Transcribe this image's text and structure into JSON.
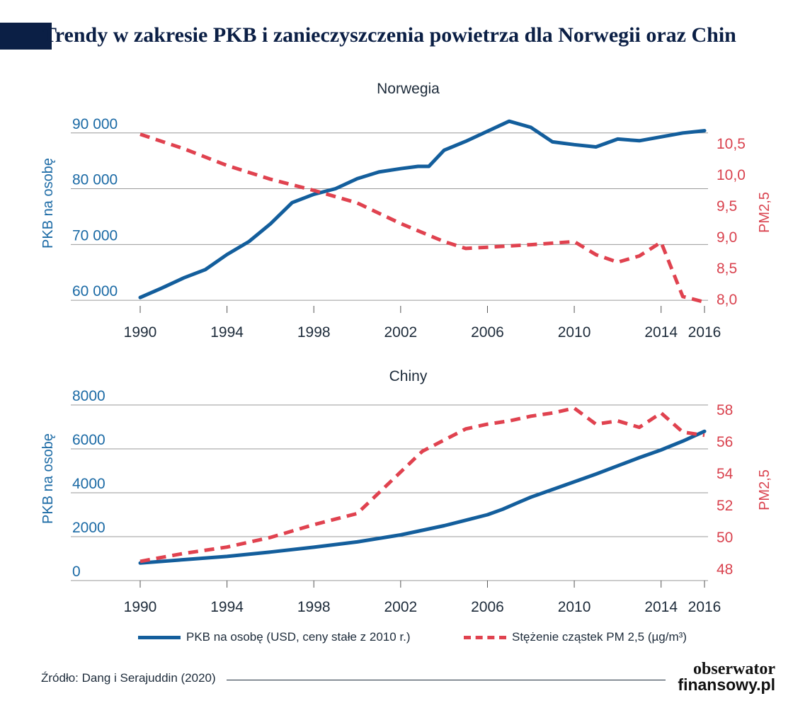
{
  "title": "Trendy w zakresie PKB i zanieczyszczenia powietrza dla Norwegii oraz Chin",
  "colors": {
    "gdp": "#135e9c",
    "pm": "#e0424f",
    "header": "#0b1f45"
  },
  "legend": {
    "gdp_label": "PKB na osobę (USD, ceny stałe z 2010 r.)",
    "pm_label": "Stężenie cząstek PM 2,5 (µg/m³)"
  },
  "source": "Źródło: Dang i Serajuddin (2020)",
  "logo": {
    "line1": "obserwator",
    "line2": "finansowy.pl"
  },
  "chart_data": [
    {
      "type": "line",
      "title": "Norwegia",
      "ylabel": "PKB na osobę",
      "ylabel_right": "PM2,5",
      "x_ticks": [
        "1990",
        "1994",
        "1998",
        "2002",
        "2006",
        "2010",
        "2014",
        "2016"
      ],
      "ylim": [
        59000,
        92000
      ],
      "y_ticks": [
        60000,
        70000,
        80000,
        90000
      ],
      "y_tick_labels": [
        "60 000",
        "70 000",
        "80 000",
        "90 000"
      ],
      "ylim_right": [
        7.9,
        10.85
      ],
      "y_ticks_right": [
        8.0,
        8.5,
        9.0,
        9.5,
        10.0,
        10.5
      ],
      "y_tick_labels_right": [
        "8,0",
        "8,5",
        "9,0",
        "9,5",
        "10,0",
        "10,5"
      ],
      "series": [
        {
          "name": "PKB na osobę (USD, ceny stałe z 2010 r.)",
          "axis": "left",
          "x": [
            1990,
            1991,
            1992,
            1993,
            1994,
            1995,
            1996,
            1997,
            1998,
            1999,
            2000,
            2001,
            2002,
            2002.8,
            2003.3,
            2004,
            2005,
            2006,
            2007,
            2008,
            2009,
            2010,
            2011,
            2012,
            2013,
            2014,
            2015,
            2016
          ],
          "values": [
            60500,
            62200,
            64000,
            65500,
            68200,
            70500,
            73700,
            77500,
            79000,
            80000,
            81800,
            83000,
            83600,
            84000,
            84000,
            86900,
            88500,
            90300,
            92100,
            91000,
            88400,
            87900,
            87500,
            88900,
            88600,
            89300,
            90000,
            90400
          ]
        },
        {
          "name": "Stężenie cząstek PM 2,5 (µg/m³)",
          "axis": "right",
          "x": [
            1990,
            1992,
            1994,
            1996,
            1998,
            2000,
            2002,
            2004,
            2005,
            2006,
            2008,
            2010,
            2011,
            2012,
            2013,
            2014,
            2015,
            2016
          ],
          "values": [
            10.65,
            10.42,
            10.15,
            9.93,
            9.75,
            9.55,
            9.22,
            8.93,
            8.82,
            8.84,
            8.88,
            8.93,
            8.72,
            8.6,
            8.7,
            8.92,
            8.05,
            7.96
          ]
        }
      ]
    },
    {
      "type": "line",
      "title": "Chiny",
      "ylabel": "PKB na osobę",
      "ylabel_right": "PM2,5",
      "x_ticks": [
        "1990",
        "1994",
        "1998",
        "2002",
        "2006",
        "2010",
        "2014",
        "2016"
      ],
      "ylim": [
        0,
        8000
      ],
      "y_ticks": [
        0,
        2000,
        4000,
        6000,
        8000
      ],
      "y_tick_labels": [
        "0",
        "2000",
        "4000",
        "6000",
        "8000"
      ],
      "ylim_right": [
        47.3,
        58.3
      ],
      "y_ticks_right": [
        48,
        50,
        52,
        54,
        56,
        58
      ],
      "y_tick_labels_right": [
        "48",
        "50",
        "52",
        "54",
        "56",
        "58"
      ],
      "series": [
        {
          "name": "PKB na osobę (USD, ceny stałe z 2010 r.)",
          "axis": "left",
          "x": [
            1990,
            1992,
            1994,
            1996,
            1998,
            2000,
            2002,
            2004,
            2005,
            2006,
            2006.7,
            2007.4,
            2008,
            2009,
            2010,
            2011,
            2012,
            2013,
            2014,
            2015,
            2016
          ],
          "values": [
            800,
            950,
            1100,
            1300,
            1520,
            1760,
            2080,
            2500,
            2750,
            3000,
            3250,
            3550,
            3800,
            4150,
            4500,
            4850,
            5230,
            5600,
            5950,
            6350,
            6800
          ]
        },
        {
          "name": "Stężenie cząstek PM 2,5 (µg/m³)",
          "axis": "right",
          "x": [
            1990,
            1992,
            1994,
            1996,
            1998,
            2000,
            2001,
            2002,
            2003,
            2004,
            2005,
            2006,
            2007,
            2008,
            2009,
            2010,
            2011,
            2012,
            2013,
            2014,
            2015,
            2016
          ],
          "values": [
            48.5,
            49.0,
            49.4,
            50.0,
            50.8,
            51.5,
            52.8,
            54.1,
            55.4,
            56.1,
            56.8,
            57.1,
            57.3,
            57.6,
            57.8,
            58.1,
            57.1,
            57.3,
            56.9,
            57.8,
            56.6,
            56.4
          ]
        }
      ]
    }
  ]
}
